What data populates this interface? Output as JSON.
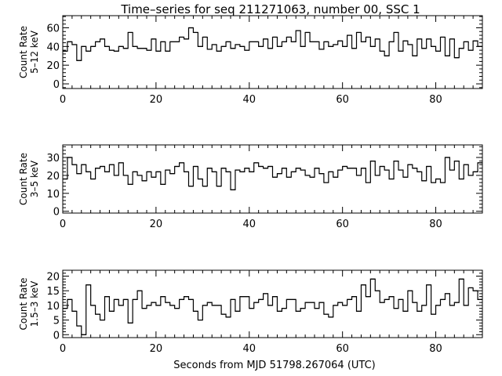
{
  "title": "Time–series for seq 211271063, number 00, SSC 1",
  "x_axis_label": "Seconds from MJD 51798.267064 (UTC)",
  "colors": {
    "background": "#ffffff",
    "line": "#000000"
  },
  "chart_data": [
    {
      "type": "line",
      "style": "step",
      "title": "Time–series for seq 211271063, number 00, SSC 1",
      "ylabel": "Count Rate\n5–12 keV",
      "ylabel_lines": [
        "Count Rate",
        "5–12 keV"
      ],
      "xlabel": "",
      "xlim": [
        0,
        90
      ],
      "ylim": [
        -5,
        73
      ],
      "xticks": [
        0,
        20,
        40,
        60,
        80
      ],
      "xtick_labels": [
        "0",
        "20",
        "40",
        "60",
        "80"
      ],
      "yticks": [
        0,
        20,
        40,
        60
      ],
      "ytick_labels": [
        "0",
        "20",
        "40",
        "60"
      ],
      "grid": false,
      "legend": "none",
      "bin_width": 1,
      "x": [
        0,
        1,
        2,
        3,
        4,
        5,
        6,
        7,
        8,
        9,
        10,
        11,
        12,
        13,
        14,
        15,
        16,
        17,
        18,
        19,
        20,
        21,
        22,
        23,
        24,
        25,
        26,
        27,
        28,
        29,
        30,
        31,
        32,
        33,
        34,
        35,
        36,
        37,
        38,
        39,
        40,
        41,
        42,
        43,
        44,
        45,
        46,
        47,
        48,
        49,
        50,
        51,
        52,
        53,
        54,
        55,
        56,
        57,
        58,
        59,
        60,
        61,
        62,
        63,
        64,
        65,
        66,
        67,
        68,
        69,
        70,
        71,
        72,
        73,
        74,
        75,
        76,
        77,
        78,
        79,
        80,
        81,
        82,
        83,
        84,
        85,
        86,
        87,
        88,
        89
      ],
      "series": [
        {
          "values": [
            35,
            45,
            42,
            25,
            40,
            35,
            40,
            45,
            48,
            40,
            36,
            35,
            40,
            38,
            55,
            40,
            38,
            38,
            36,
            48,
            35,
            45,
            35,
            45,
            45,
            50,
            48,
            60,
            55,
            40,
            50,
            37,
            42,
            35,
            40,
            45,
            38,
            42,
            40,
            36,
            45,
            45,
            40,
            48,
            38,
            50,
            40,
            45,
            50,
            45,
            57,
            40,
            55,
            45,
            45,
            37,
            45,
            40,
            42,
            46,
            40,
            52,
            38,
            55,
            45,
            50,
            40,
            48,
            35,
            30,
            45,
            55,
            35,
            46,
            42,
            30,
            48,
            38,
            48,
            40,
            35,
            50,
            30,
            48,
            28,
            38,
            45,
            36,
            46,
            40
          ]
        }
      ]
    },
    {
      "type": "line",
      "style": "step",
      "ylabel": "Count Rate\n3–5 keV",
      "ylabel_lines": [
        "Count Rate",
        "3–5 keV"
      ],
      "xlabel": "",
      "xlim": [
        0,
        90
      ],
      "ylim": [
        -1,
        37
      ],
      "xticks": [
        0,
        20,
        40,
        60,
        80
      ],
      "xtick_labels": [
        "0",
        "20",
        "40",
        "60",
        "80"
      ],
      "yticks": [
        0,
        10,
        20,
        30
      ],
      "ytick_labels": [
        "0",
        "10",
        "20",
        "30"
      ],
      "grid": false,
      "legend": "none",
      "bin_width": 1,
      "x": [
        0,
        1,
        2,
        3,
        4,
        5,
        6,
        7,
        8,
        9,
        10,
        11,
        12,
        13,
        14,
        15,
        16,
        17,
        18,
        19,
        20,
        21,
        22,
        23,
        24,
        25,
        26,
        27,
        28,
        29,
        30,
        31,
        32,
        33,
        34,
        35,
        36,
        37,
        38,
        39,
        40,
        41,
        42,
        43,
        44,
        45,
        46,
        47,
        48,
        49,
        50,
        51,
        52,
        53,
        54,
        55,
        56,
        57,
        58,
        59,
        60,
        61,
        62,
        63,
        64,
        65,
        66,
        67,
        68,
        69,
        70,
        71,
        72,
        73,
        74,
        75,
        76,
        77,
        78,
        79,
        80,
        81,
        82,
        83,
        84,
        85,
        86,
        87,
        88,
        89
      ],
      "series": [
        {
          "values": [
            18,
            30,
            26,
            21,
            26,
            22,
            18,
            24,
            25,
            22,
            26,
            20,
            27,
            20,
            15,
            22,
            20,
            17,
            22,
            19,
            22,
            15,
            23,
            21,
            25,
            27,
            22,
            14,
            25,
            18,
            14,
            24,
            22,
            14,
            24,
            22,
            12,
            23,
            22,
            24,
            22,
            27,
            25,
            24,
            25,
            19,
            21,
            24,
            19,
            22,
            24,
            23,
            20,
            19,
            24,
            21,
            16,
            22,
            19,
            23,
            25,
            24,
            24,
            20,
            24,
            16,
            28,
            20,
            25,
            23,
            18,
            28,
            23,
            19,
            26,
            24,
            22,
            17,
            25,
            16,
            18,
            16,
            30,
            23,
            28,
            18,
            26,
            20,
            22,
            27
          ]
        }
      ]
    },
    {
      "type": "line",
      "style": "step",
      "ylabel": "Count Rate\n1.5–3 keV",
      "ylabel_lines": [
        "Count Rate",
        "1.5–3 keV"
      ],
      "xlabel": "Seconds from MJD 51798.267064 (UTC)",
      "xlim": [
        0,
        90
      ],
      "ylim": [
        -1,
        22
      ],
      "xticks": [
        0,
        20,
        40,
        60,
        80
      ],
      "xtick_labels": [
        "0",
        "20",
        "40",
        "60",
        "80"
      ],
      "yticks": [
        0,
        5,
        10,
        15,
        20
      ],
      "ytick_labels": [
        "0",
        "5",
        "10",
        "15",
        "20"
      ],
      "grid": false,
      "legend": "none",
      "bin_width": 1,
      "x": [
        0,
        1,
        2,
        3,
        4,
        5,
        6,
        7,
        8,
        9,
        10,
        11,
        12,
        13,
        14,
        15,
        16,
        17,
        18,
        19,
        20,
        21,
        22,
        23,
        24,
        25,
        26,
        27,
        28,
        29,
        30,
        31,
        32,
        33,
        34,
        35,
        36,
        37,
        38,
        39,
        40,
        41,
        42,
        43,
        44,
        45,
        46,
        47,
        48,
        49,
        50,
        51,
        52,
        53,
        54,
        55,
        56,
        57,
        58,
        59,
        60,
        61,
        62,
        63,
        64,
        65,
        66,
        67,
        68,
        69,
        70,
        71,
        72,
        73,
        74,
        75,
        76,
        77,
        78,
        79,
        80,
        81,
        82,
        83,
        84,
        85,
        86,
        87,
        88,
        89
      ],
      "series": [
        {
          "values": [
            9,
            12,
            8,
            3,
            0,
            17,
            10,
            7,
            5,
            13,
            8,
            12,
            10,
            12,
            4,
            12,
            15,
            9,
            10,
            11,
            10,
            13,
            11,
            10,
            9,
            12,
            13,
            12,
            8,
            5,
            10,
            11,
            10,
            10,
            7,
            6,
            12,
            8,
            13,
            13,
            9,
            11,
            12,
            14,
            10,
            13,
            8,
            9,
            12,
            12,
            8,
            9,
            11,
            11,
            9,
            11,
            7,
            6,
            10,
            11,
            10,
            12,
            13,
            8,
            17,
            13,
            19,
            15,
            11,
            12,
            13,
            9,
            12,
            8,
            15,
            11,
            8,
            10,
            17,
            7,
            10,
            12,
            14,
            10,
            11,
            19,
            10,
            16,
            15,
            12
          ]
        }
      ]
    }
  ]
}
